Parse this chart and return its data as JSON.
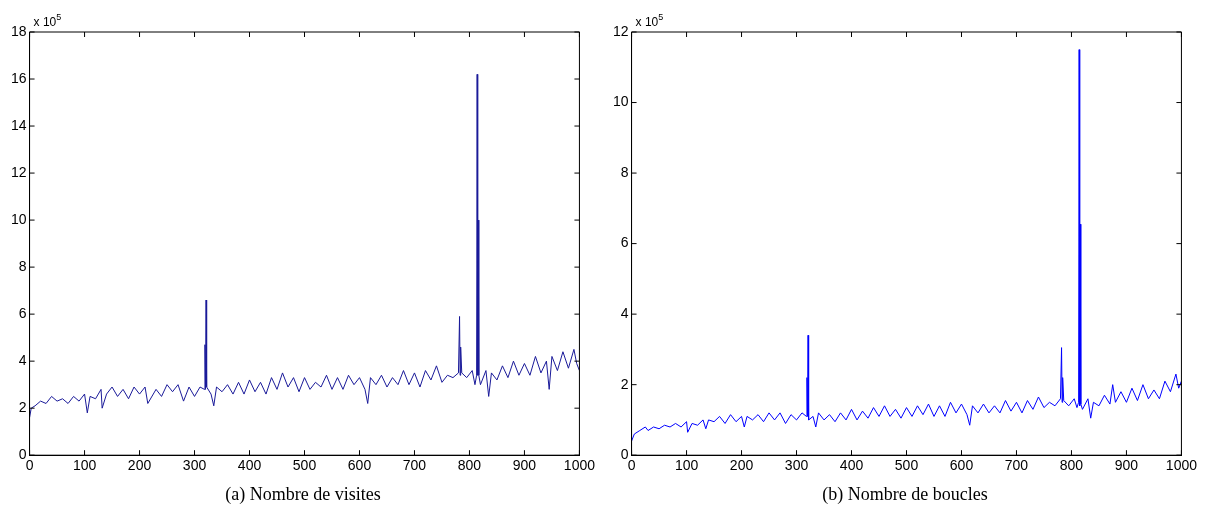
{
  "chart_data": [
    {
      "type": "line",
      "title": "(a) Nombre de visites",
      "annotations": [
        "x 10$^{5}$"
      ],
      "marker": "none",
      "grid": false,
      "legend": false,
      "xlim": [
        0,
        1000
      ],
      "xticks": [
        0,
        100,
        200,
        300,
        400,
        500,
        600,
        700,
        800,
        900,
        1000
      ],
      "ylim": [
        0,
        18
      ],
      "yticks": [
        0,
        2,
        4,
        6,
        8,
        10,
        12,
        14,
        16,
        18
      ],
      "series": [
        {
          "color": "#1a1a99",
          "x": [
            0,
            3,
            10,
            20,
            30,
            40,
            50,
            60,
            70,
            80,
            90,
            100,
            105,
            110,
            120,
            130,
            132,
            140,
            150,
            160,
            170,
            180,
            190,
            200,
            210,
            215,
            230,
            240,
            250,
            260,
            270,
            280,
            290,
            300,
            310,
            318,
            319,
            320,
            321,
            322,
            330,
            335,
            340,
            350,
            360,
            370,
            380,
            390,
            400,
            410,
            420,
            430,
            440,
            450,
            460,
            470,
            480,
            490,
            500,
            510,
            520,
            530,
            540,
            550,
            560,
            570,
            580,
            590,
            600,
            610,
            615,
            620,
            630,
            640,
            650,
            660,
            670,
            680,
            690,
            700,
            710,
            720,
            730,
            740,
            750,
            760,
            770,
            780,
            782,
            783,
            784,
            786,
            795,
            805,
            810,
            813,
            814,
            815,
            816,
            817,
            820,
            830,
            835,
            840,
            850,
            860,
            870,
            880,
            890,
            900,
            910,
            920,
            930,
            940,
            945,
            950,
            960,
            970,
            980,
            990,
            995,
            1000
          ],
          "values": [
            1.6,
            2.0,
            2.1,
            2.3,
            2.2,
            2.5,
            2.3,
            2.4,
            2.2,
            2.5,
            2.3,
            2.6,
            1.8,
            2.5,
            2.4,
            2.8,
            2.0,
            2.6,
            2.9,
            2.5,
            2.8,
            2.4,
            2.9,
            2.6,
            2.9,
            2.2,
            2.8,
            2.5,
            3.0,
            2.7,
            3.0,
            2.3,
            2.9,
            2.5,
            2.9,
            2.8,
            4.7,
            2.8,
            6.6,
            2.9,
            2.6,
            2.1,
            2.9,
            2.7,
            3.0,
            2.6,
            3.1,
            2.6,
            3.2,
            2.7,
            3.1,
            2.6,
            3.3,
            2.8,
            3.5,
            2.9,
            3.3,
            2.7,
            3.3,
            2.8,
            3.1,
            2.9,
            3.4,
            2.8,
            3.3,
            2.8,
            3.4,
            3.0,
            3.3,
            2.8,
            2.2,
            3.3,
            3.0,
            3.4,
            2.9,
            3.3,
            3.0,
            3.6,
            3.0,
            3.5,
            2.9,
            3.6,
            3.2,
            3.8,
            3.1,
            3.4,
            3.3,
            3.5,
            5.9,
            3.4,
            4.6,
            3.5,
            3.3,
            3.6,
            3.0,
            3.4,
            16.2,
            3.4,
            10.0,
            3.4,
            3.0,
            3.6,
            2.5,
            3.5,
            3.2,
            3.8,
            3.3,
            4.0,
            3.4,
            3.9,
            3.4,
            4.2,
            3.5,
            4.0,
            2.8,
            4.2,
            3.6,
            4.4,
            3.7,
            4.5,
            3.9,
            3.6
          ]
        }
      ]
    },
    {
      "type": "line",
      "title": "(b) Nombre de boucles",
      "annotations": [
        "x 10$^{5}$"
      ],
      "marker": "none",
      "grid": false,
      "legend": false,
      "xlim": [
        0,
        1000
      ],
      "xticks": [
        0,
        100,
        200,
        300,
        400,
        500,
        600,
        700,
        800,
        900,
        1000
      ],
      "ylim": [
        0,
        12
      ],
      "yticks": [
        0,
        2,
        4,
        6,
        8,
        10,
        12
      ],
      "series": [
        {
          "color": "#0000ff",
          "x": [
            0,
            5,
            15,
            25,
            30,
            40,
            50,
            60,
            70,
            80,
            90,
            100,
            102,
            110,
            120,
            130,
            135,
            140,
            150,
            160,
            170,
            180,
            190,
            200,
            205,
            210,
            220,
            230,
            240,
            250,
            260,
            270,
            280,
            290,
            300,
            310,
            318,
            319,
            320,
            321,
            322,
            330,
            335,
            340,
            350,
            360,
            370,
            380,
            390,
            400,
            410,
            420,
            430,
            440,
            450,
            460,
            470,
            480,
            490,
            500,
            510,
            520,
            530,
            540,
            550,
            560,
            570,
            580,
            590,
            600,
            610,
            615,
            620,
            630,
            640,
            650,
            660,
            670,
            680,
            690,
            700,
            710,
            720,
            730,
            740,
            750,
            760,
            770,
            780,
            782,
            783,
            784,
            786,
            795,
            805,
            810,
            813,
            814,
            815,
            816,
            817,
            820,
            830,
            835,
            840,
            850,
            860,
            870,
            875,
            880,
            890,
            900,
            910,
            920,
            930,
            940,
            950,
            960,
            970,
            980,
            990,
            995,
            1000
          ],
          "values": [
            0.4,
            0.6,
            0.7,
            0.8,
            0.7,
            0.8,
            0.75,
            0.85,
            0.8,
            0.9,
            0.8,
            0.95,
            0.65,
            0.9,
            0.85,
            1.0,
            0.75,
            1.0,
            0.95,
            1.1,
            0.9,
            1.15,
            0.95,
            1.1,
            0.8,
            1.1,
            1.0,
            1.15,
            0.95,
            1.2,
            1.0,
            1.2,
            0.9,
            1.15,
            1.0,
            1.2,
            1.1,
            2.2,
            1.1,
            3.4,
            1.0,
            1.1,
            0.8,
            1.2,
            1.0,
            1.15,
            0.95,
            1.2,
            1.0,
            1.3,
            1.0,
            1.25,
            1.05,
            1.35,
            1.1,
            1.4,
            1.1,
            1.3,
            1.05,
            1.35,
            1.1,
            1.4,
            1.15,
            1.45,
            1.1,
            1.4,
            1.1,
            1.5,
            1.2,
            1.45,
            1.15,
            0.85,
            1.4,
            1.2,
            1.45,
            1.2,
            1.4,
            1.2,
            1.55,
            1.25,
            1.5,
            1.2,
            1.55,
            1.3,
            1.65,
            1.35,
            1.5,
            1.4,
            1.6,
            3.05,
            1.5,
            2.2,
            1.55,
            1.4,
            1.6,
            1.35,
            1.5,
            11.5,
            1.4,
            6.55,
            1.45,
            1.3,
            1.6,
            1.05,
            1.5,
            1.4,
            1.7,
            1.45,
            2.0,
            1.5,
            1.8,
            1.5,
            1.9,
            1.55,
            2.0,
            1.6,
            1.85,
            1.6,
            2.1,
            1.8,
            2.3,
            1.9,
            2.1
          ]
        }
      ]
    }
  ]
}
